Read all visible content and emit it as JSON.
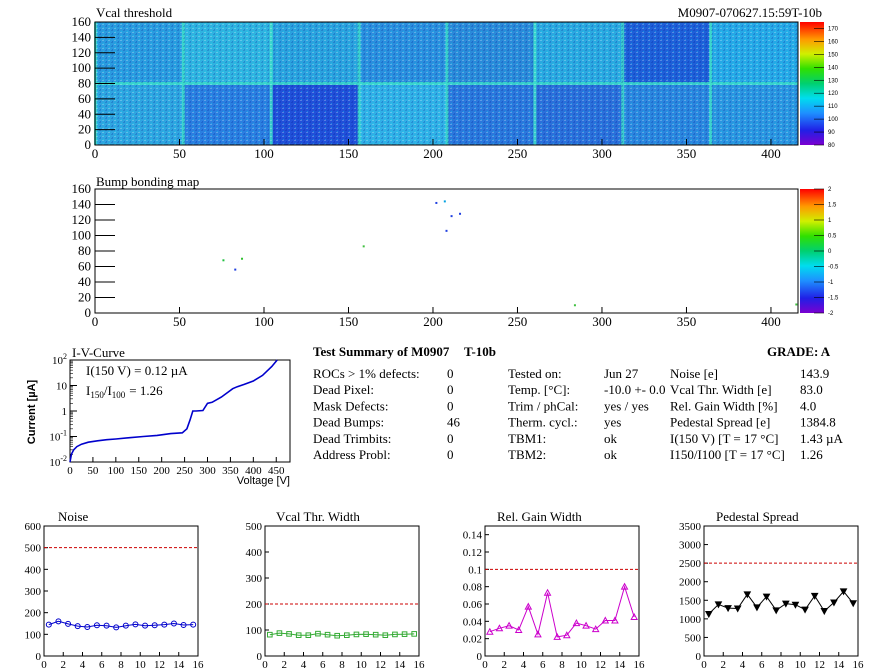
{
  "header": {
    "title_left": "Vcal threshold",
    "title_right": "M0907-070627.15:59T-10b"
  },
  "bump_title": "Bump bonding map",
  "iv": {
    "title": "I-V-Curve",
    "line1": "I(150 V) = 0.12 µA",
    "ratio_label": "I",
    "ratio_sub1": "150",
    "ratio_sep": "/I",
    "ratio_sub2": "100",
    "ratio_val": "=  1.26",
    "ylabel": "Current [µA]",
    "xlabel": "Voltage [V]"
  },
  "summary": {
    "title": "Test Summary of M0907",
    "subtitle": "T-10b",
    "grade_label": "GRADE:  A",
    "col1_labels": [
      "ROCs > 1% defects:",
      "Dead Pixel:",
      "Mask Defects:",
      "Dead Bumps:",
      "Dead Trimbits:",
      "Address Probl:"
    ],
    "col1_values": [
      "0",
      "0",
      "0",
      "46",
      "0",
      "0"
    ],
    "col2_labels": [
      "Tested on:",
      "Temp. [°C]:",
      "Trim / phCal:",
      "Therm. cycl.:",
      "TBM1:",
      "TBM2:"
    ],
    "col2_values": [
      "Jun 27",
      "-10.0 +- 0.0",
      "yes / yes",
      "yes",
      "ok",
      "ok"
    ],
    "col3_labels": [
      "Noise [e]",
      "Vcal Thr. Width [e]",
      "Rel. Gain Width [%]",
      "Pedestal Spread [e]",
      "I(150 V) [T = 17 °C]",
      "I150/I100  [T = 17 °C]"
    ],
    "col3_values": [
      "143.9",
      "83.0",
      "4.0",
      "1384.8",
      "1.43 µA",
      "1.26"
    ]
  },
  "chart_data": [
    {
      "type": "heatmap",
      "title": "Vcal threshold",
      "xlim": [
        0,
        416
      ],
      "ylim": [
        0,
        160
      ],
      "xticks": [
        "0",
        "50",
        "100",
        "150",
        "200",
        "250",
        "300",
        "350",
        "400"
      ],
      "yticks": [
        "0",
        "20",
        "40",
        "60",
        "80",
        "100",
        "120",
        "140",
        "160"
      ],
      "zlim": [
        80,
        175
      ],
      "zticks": [
        "80",
        "90",
        "100",
        "110",
        "120",
        "130",
        "140",
        "150",
        "160",
        "170"
      ]
    },
    {
      "type": "scatter",
      "title": "Bump bonding map",
      "xlim": [
        0,
        416
      ],
      "ylim": [
        0,
        160
      ],
      "xticks": [
        "0",
        "50",
        "100",
        "150",
        "200",
        "250",
        "300",
        "350",
        "400"
      ],
      "yticks": [
        "0",
        "20",
        "40",
        "60",
        "80",
        "100",
        "120",
        "140",
        "160"
      ],
      "zlim": [
        -2,
        2
      ],
      "zticks": [
        "-2",
        "-1.5",
        "-1",
        "-0.5",
        "0",
        "0.5",
        "1",
        "1.5",
        "2"
      ],
      "points": [
        [
          76,
          68
        ],
        [
          83,
          56
        ],
        [
          87,
          70
        ],
        [
          159,
          86
        ],
        [
          202,
          142
        ],
        [
          207,
          144
        ],
        [
          208,
          106
        ],
        [
          211,
          125
        ],
        [
          216,
          128
        ],
        [
          284,
          10
        ],
        [
          415,
          11
        ]
      ]
    },
    {
      "type": "line",
      "title": "I-V-Curve",
      "xlabel": "Voltage [V]",
      "ylabel": "Current [µA]",
      "log_y": true,
      "xlim": [
        0,
        480
      ],
      "ylim": [
        0.01,
        100
      ],
      "xticks": [
        "0",
        "50",
        "100",
        "150",
        "200",
        "250",
        "300",
        "350",
        "400",
        "450"
      ],
      "x": [
        0,
        3,
        8,
        15,
        25,
        40,
        60,
        80,
        100,
        130,
        160,
        190,
        220,
        245,
        255,
        262,
        268,
        275,
        290,
        300,
        310,
        330,
        345,
        355,
        365,
        380,
        400,
        420,
        440,
        452
      ],
      "y": [
        0.01,
        0.02,
        0.03,
        0.04,
        0.05,
        0.06,
        0.068,
        0.075,
        0.08,
        0.09,
        0.1,
        0.11,
        0.13,
        0.14,
        0.2,
        0.45,
        1.0,
        1.0,
        1.05,
        2.0,
        2.2,
        3.5,
        5.5,
        7.5,
        9,
        11,
        15,
        25,
        55,
        100
      ]
    },
    {
      "type": "line",
      "title": "Noise",
      "color": "#0000cc",
      "marker": "circle",
      "xlim": [
        0,
        16
      ],
      "ylim": [
        0,
        600
      ],
      "xticks": [
        "0",
        "2",
        "4",
        "6",
        "8",
        "10",
        "12",
        "14",
        "16"
      ],
      "yticks": [
        "0",
        "100",
        "200",
        "300",
        "400",
        "500",
        "600"
      ],
      "threshold": 500,
      "x": [
        0.5,
        1.5,
        2.5,
        3.5,
        4.5,
        5.5,
        6.5,
        7.5,
        8.5,
        9.5,
        10.5,
        11.5,
        12.5,
        13.5,
        14.5,
        15.5
      ],
      "y": [
        145,
        160,
        148,
        138,
        134,
        142,
        140,
        132,
        140,
        146,
        140,
        142,
        145,
        150,
        143,
        145
      ]
    },
    {
      "type": "line",
      "title": "Vcal Thr. Width",
      "color": "#33aa33",
      "marker": "square",
      "xlim": [
        0,
        16
      ],
      "ylim": [
        0,
        500
      ],
      "xticks": [
        "0",
        "2",
        "4",
        "6",
        "8",
        "10",
        "12",
        "14",
        "16"
      ],
      "yticks": [
        "0",
        "100",
        "200",
        "300",
        "400",
        "500"
      ],
      "threshold": 200,
      "x": [
        0.5,
        1.5,
        2.5,
        3.5,
        4.5,
        5.5,
        6.5,
        7.5,
        8.5,
        9.5,
        10.5,
        11.5,
        12.5,
        13.5,
        14.5,
        15.5
      ],
      "y": [
        82,
        88,
        85,
        80,
        80,
        86,
        82,
        78,
        80,
        83,
        84,
        82,
        80,
        83,
        84,
        85
      ]
    },
    {
      "type": "line",
      "title": "Rel. Gain Width",
      "color": "#cc00cc",
      "marker": "triangle",
      "xlim": [
        0,
        16
      ],
      "ylim": [
        0,
        0.15
      ],
      "xticks": [
        "0",
        "2",
        "4",
        "6",
        "8",
        "10",
        "12",
        "14",
        "16"
      ],
      "yticks": [
        "0",
        "0.02",
        "0.04",
        "0.06",
        "0.08",
        "0.1",
        "0.12",
        "0.14"
      ],
      "threshold": 0.1,
      "x": [
        0.5,
        1.5,
        2.5,
        3.5,
        4.5,
        5.5,
        6.5,
        7.5,
        8.5,
        9.5,
        10.5,
        11.5,
        12.5,
        13.5,
        14.5,
        15.5
      ],
      "y": [
        0.028,
        0.032,
        0.035,
        0.03,
        0.057,
        0.025,
        0.073,
        0.022,
        0.024,
        0.038,
        0.035,
        0.031,
        0.041,
        0.041,
        0.08,
        0.045
      ]
    },
    {
      "type": "line",
      "title": "Pedestal Spread",
      "color": "#000000",
      "marker": "triangle-down",
      "xlim": [
        0,
        16
      ],
      "ylim": [
        0,
        3500
      ],
      "xticks": [
        "0",
        "2",
        "4",
        "6",
        "8",
        "10",
        "12",
        "14",
        "16"
      ],
      "yticks": [
        "0",
        "500",
        "1000",
        "1500",
        "2000",
        "2500",
        "3000",
        "3500"
      ],
      "threshold": 2500,
      "x": [
        0.5,
        1.5,
        2.5,
        3.5,
        4.5,
        5.5,
        6.5,
        7.5,
        8.5,
        9.5,
        10.5,
        11.5,
        12.5,
        13.5,
        14.5,
        15.5
      ],
      "y": [
        1130,
        1390,
        1290,
        1280,
        1660,
        1310,
        1600,
        1230,
        1410,
        1380,
        1250,
        1620,
        1210,
        1440,
        1740,
        1420
      ]
    }
  ]
}
